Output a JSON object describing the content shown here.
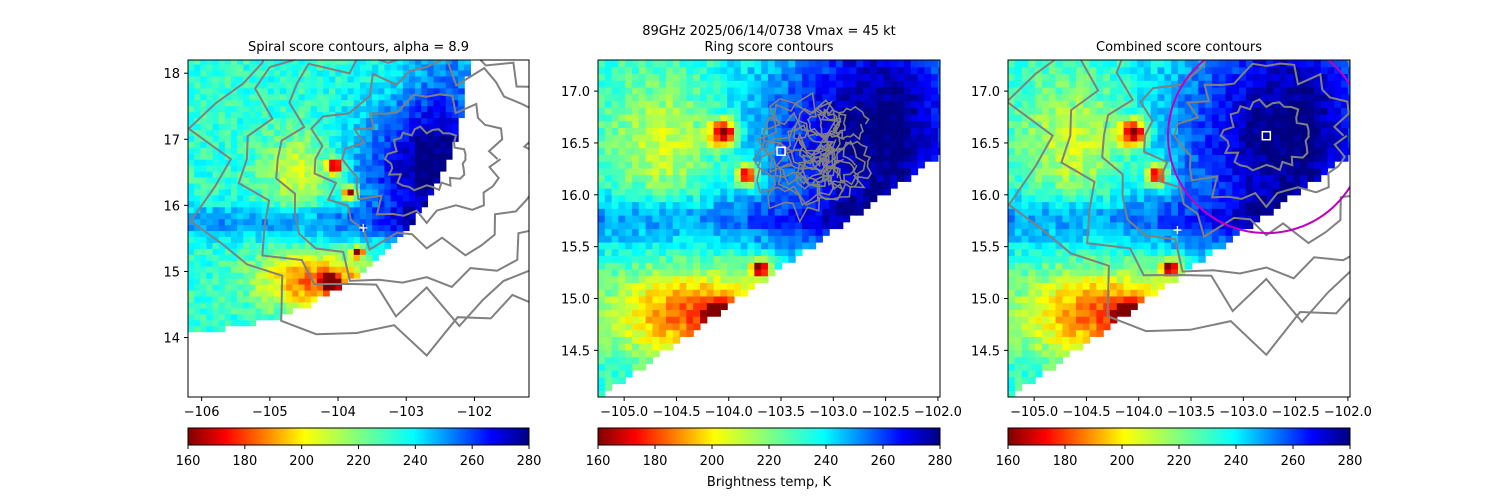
{
  "figure_title": "89GHz  2025/06/14/0738    Vmax = 45 kt",
  "colorbar_label": "Brightness temp, K",
  "chart_data": [
    {
      "type": "heatmap",
      "title": "Spiral score contours, alpha =  8.9",
      "xlim": [
        -106.2,
        -101.2
      ],
      "ylim": [
        13.1,
        18.2
      ],
      "x_ticks": [
        -106,
        -105,
        -104,
        -103,
        -102
      ],
      "y_ticks": [
        14,
        15,
        16,
        17,
        18
      ],
      "center_marker": {
        "lon": -103.63,
        "lat": 15.66
      },
      "swath_edge": {
        "center_lon": -106.2,
        "center_lat": 18.2,
        "radius_deg": 4.1
      },
      "colormap": "jet",
      "overlay": "gray score contours"
    },
    {
      "type": "heatmap",
      "title": "Ring score contours",
      "xlim": [
        -105.25,
        -101.98
      ],
      "ylim": [
        14.05,
        17.3
      ],
      "x_ticks": [
        -105.0,
        -104.5,
        -104.0,
        -103.5,
        -103.0,
        -102.5,
        -102.0
      ],
      "y_ticks": [
        14.5,
        15.0,
        15.5,
        16.0,
        16.5,
        17.0
      ],
      "square_marker": {
        "lon": -103.5,
        "lat": 16.42
      },
      "colormap": "jet",
      "overlay": "gray score contours"
    },
    {
      "type": "heatmap",
      "title": "Combined score contours",
      "xlim": [
        -105.25,
        -101.98
      ],
      "ylim": [
        14.05,
        17.3
      ],
      "x_ticks": [
        -105.0,
        -104.5,
        -104.0,
        -103.5,
        -103.0,
        -102.5,
        -102.0
      ],
      "y_ticks": [
        14.5,
        15.0,
        15.5,
        16.0,
        16.5,
        17.0
      ],
      "square_marker": {
        "lon": -102.78,
        "lat": 16.57
      },
      "center_marker": {
        "lon": -103.63,
        "lat": 15.66
      },
      "circle_marker": {
        "lon": -102.78,
        "lat": 16.57,
        "radius_deg": 0.94,
        "color": "#c000c0"
      },
      "colormap": "jet",
      "overlay": "gray score contours"
    }
  ],
  "colorbar": {
    "min": 160,
    "max": 280,
    "ticks": [
      160,
      180,
      200,
      220,
      240,
      260,
      280
    ],
    "colormap": "jet_r"
  }
}
